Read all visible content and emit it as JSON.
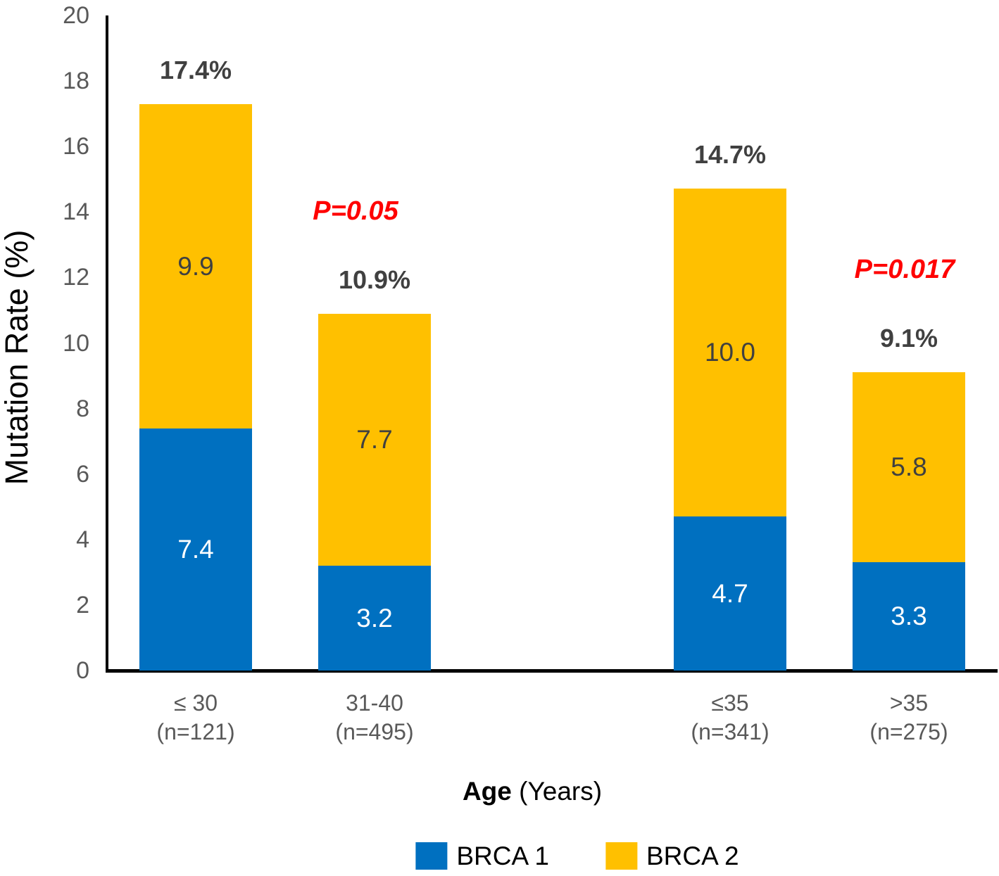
{
  "chart_data": {
    "type": "bar",
    "stacked": true,
    "title": "",
    "ylabel": "Mutation Rate (%)",
    "xlabel_bold": "Age",
    "xlabel_regular": "(Years)",
    "ylim": [
      0,
      20
    ],
    "yticks": [
      0,
      2,
      4,
      6,
      8,
      10,
      12,
      14,
      16,
      18,
      20
    ],
    "grid": false,
    "legend_position": "bottom",
    "categories": [
      "≤ 30",
      "31-40",
      "≤35",
      ">35"
    ],
    "n_labels": [
      "(n=121)",
      "(n=495)",
      "(n=341)",
      "(n=275)"
    ],
    "series": [
      {
        "name": "BRCA 1",
        "color": "#0070C0",
        "label_color": "#FFFFFF",
        "values": [
          7.4,
          3.2,
          4.7,
          3.3
        ],
        "value_labels": [
          "7.4",
          "3.2",
          "4.7",
          "3.3"
        ]
      },
      {
        "name": "BRCA 2",
        "color": "#FFC000",
        "label_color": "#404040",
        "values": [
          9.9,
          7.7,
          10.0,
          5.8
        ],
        "value_labels": [
          "9.9",
          "7.7",
          "10.0",
          "5.8"
        ]
      }
    ],
    "totals": [
      "17.4%",
      "10.9%",
      "14.7%",
      "9.1%"
    ],
    "p_values": [
      null,
      "P=0.05",
      null,
      "P=0.017"
    ],
    "p_color": "#FF0000",
    "colors": {
      "axis": "#000000",
      "tick_label": "#595959",
      "total_label": "#404040"
    }
  }
}
